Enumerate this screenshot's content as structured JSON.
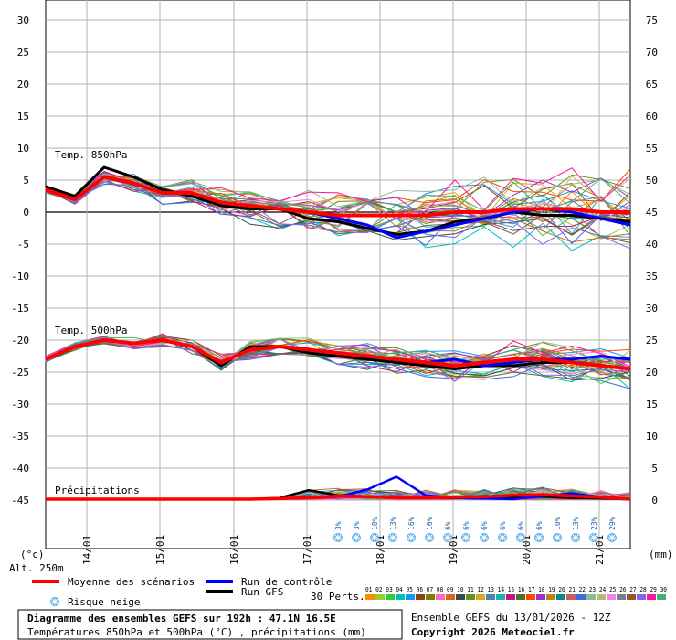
{
  "chart_data": {
    "type": "line",
    "left_axis_ticks": [
      "30",
      "25",
      "20",
      "15",
      "10",
      "5",
      "0",
      "-5",
      "-10",
      "-15",
      "-20",
      "-25",
      "-30",
      "-35",
      "-40",
      "-45"
    ],
    "right_axis_ticks": [
      "75",
      "70",
      "65",
      "60",
      "55",
      "50",
      "45",
      "40",
      "35",
      "30",
      "25",
      "20",
      "15",
      "10",
      "5",
      "0"
    ],
    "left_unit": "(°c)",
    "right_unit": "(mm)",
    "altitude_label": "Alt. 250m",
    "dates": [
      "14/01",
      "15/01",
      "16/01",
      "17/01",
      "18/01",
      "19/01",
      "20/01",
      "21/01"
    ],
    "section_labels": {
      "t850": "Temp. 850hPa",
      "t500": "Temp. 500hPa",
      "precip": "Précipitations"
    },
    "snow_risk": [
      "3%",
      "3%",
      "10%",
      "13%",
      "16%",
      "16%",
      "6%",
      "6%",
      "6%",
      "6%",
      "6%",
      "6%",
      "10%",
      "13%",
      "23%",
      "29%"
    ],
    "t850_mean": [
      3.5,
      2,
      5.5,
      4.5,
      3,
      3,
      1.5,
      1,
      0.5,
      0,
      -0.5,
      -0.5,
      -0.5,
      -0.5,
      0,
      0,
      0.5,
      0.5,
      0.5,
      0,
      0
    ],
    "t850_control": [
      3.5,
      2,
      5.5,
      4.5,
      3,
      3,
      1.5,
      1,
      0.5,
      0,
      -1,
      -2,
      -4,
      -3,
      -2,
      -1,
      0,
      0.5,
      0,
      -1,
      -2
    ],
    "t850_gfs": [
      4,
      2.5,
      7,
      5.5,
      3.5,
      2.5,
      1,
      0.5,
      0.5,
      -1,
      -1.5,
      -2.5,
      -3.5,
      -3,
      -1.5,
      -1,
      0,
      -0.5,
      -0.5,
      -1,
      -1.5
    ],
    "t500_mean": [
      -23,
      -21,
      -20,
      -20.5,
      -20,
      -21,
      -23.5,
      -21.5,
      -21,
      -21.5,
      -22,
      -22.5,
      -23,
      -23.5,
      -24,
      -23.5,
      -23,
      -23,
      -23.5,
      -24,
      -24.5
    ],
    "t500_control": [
      -23,
      -21,
      -20,
      -20.5,
      -20,
      -21,
      -23.5,
      -21.5,
      -21,
      -21.5,
      -22,
      -22.5,
      -23,
      -23.5,
      -23,
      -24,
      -23.5,
      -23,
      -23,
      -22.5,
      -23
    ],
    "t500_gfs": [
      -23,
      -21,
      -20,
      -20.5,
      -20,
      -21,
      -24,
      -21,
      -21,
      -22,
      -22.5,
      -23,
      -23.5,
      -24,
      -24.5,
      -24,
      -24,
      -23.5,
      -23.5,
      -24,
      -24.5
    ],
    "precip_mean": [
      0,
      0,
      0,
      0,
      0,
      0,
      0,
      0,
      0.1,
      0.2,
      0.5,
      0.4,
      0.2,
      0.2,
      0.3,
      0.4,
      0.6,
      0.7,
      0.5,
      0.3,
      0
    ],
    "precip_control": [
      0,
      0,
      0,
      0,
      0,
      0,
      0,
      0,
      0.1,
      0.2,
      0.4,
      1.5,
      3.5,
      0.6,
      0.2,
      0.1,
      0,
      0.5,
      0.9,
      0.3,
      0
    ],
    "precip_gfs": [
      0,
      0,
      0,
      0,
      0,
      0,
      0,
      0,
      0.2,
      1.4,
      0.6,
      0.4,
      0.3,
      0.2,
      0.2,
      0.1,
      0.3,
      0.4,
      0.2,
      0.1,
      0
    ],
    "legend": {
      "mean": "Moyenne des scénarios",
      "control": "Run de contrôle",
      "gfs": "Run GFS",
      "snow": "Risque neige",
      "perts": "30 Perts.",
      "pert_numbers": "01 02 03 04 05 06 07 08 09 10 11 12 13 14 15 16 17 18 19 20 21 22 23 24 25 26 27 28 29 30"
    },
    "colors": {
      "mean": "#ff0000",
      "control": "#0000ff",
      "gfs": "#000000"
    },
    "pert_colors": [
      "#ff8c00",
      "#9acd32",
      "#32cd32",
      "#00bfbf",
      "#1e90ff",
      "#8b4513",
      "#808000",
      "#ff69b4",
      "#d2691e",
      "#2f4f4f",
      "#6b8e23",
      "#daa520",
      "#4682b4",
      "#20b2aa",
      "#c71585",
      "#556b2f",
      "#ff4500",
      "#9932cc",
      "#b8860b",
      "#008b8b",
      "#cd5c5c",
      "#4169e1",
      "#8fbc8f",
      "#bdb76b",
      "#ee82ee",
      "#708090",
      "#a0522d",
      "#7b68ee",
      "#ff1493",
      "#3cb371"
    ],
    "footer": {
      "title": "Diagramme des ensembles GEFS sur 192h : 47.1N 16.5E",
      "subtitle": "Températures 850hPa et 500hPa (°C) , précipitations (mm)",
      "ensemble": "Ensemble GEFS du 13/01/2026 - 12Z",
      "copyright": "Copyright 2026 Meteociel.fr"
    }
  }
}
